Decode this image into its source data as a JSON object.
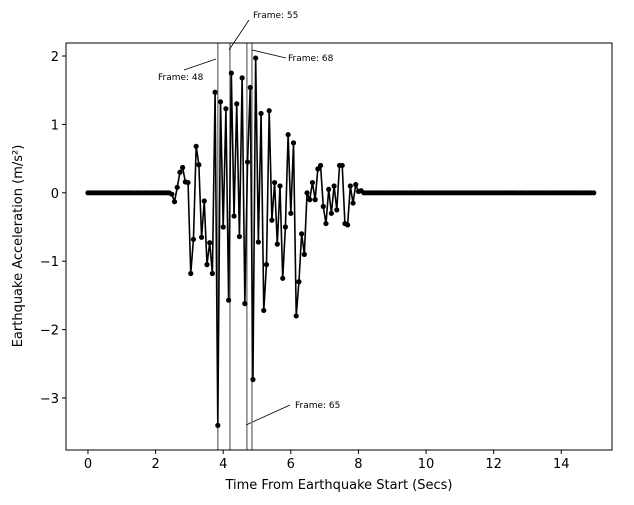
{
  "chart_data": {
    "type": "line",
    "xlabel": "Time From Earthquake Start (Secs)",
    "ylabel": "Earthquake Acceleration (m/s²)",
    "x": [
      0,
      0.08,
      0.16,
      0.24,
      0.32,
      0.4,
      0.48,
      0.56,
      0.64,
      0.72,
      0.8,
      0.88,
      0.96,
      1.04,
      1.12,
      1.2,
      1.28,
      1.36,
      1.44,
      1.52,
      1.6,
      1.68,
      1.76,
      1.84,
      1.92,
      2,
      2.08,
      2.16,
      2.24,
      2.32,
      2.4,
      2.48,
      2.56,
      2.64,
      2.72,
      2.8,
      2.88,
      2.96,
      3.04,
      3.12,
      3.2,
      3.28,
      3.36,
      3.44,
      3.52,
      3.6,
      3.68,
      3.76,
      3.84,
      3.92,
      4,
      4.08,
      4.16,
      4.24,
      4.32,
      4.4,
      4.48,
      4.56,
      4.64,
      4.72,
      4.8,
      4.88,
      4.96,
      5.04,
      5.12,
      5.2,
      5.28,
      5.36,
      5.44,
      5.52,
      5.6,
      5.68,
      5.76,
      5.84,
      5.92,
      6,
      6.08,
      6.16,
      6.24,
      6.32,
      6.4,
      6.48,
      6.56,
      6.64,
      6.72,
      6.8,
      6.88,
      6.96,
      7.04,
      7.12,
      7.2,
      7.28,
      7.36,
      7.44,
      7.52,
      7.6,
      7.68,
      7.76,
      7.84,
      7.92,
      8,
      8.08,
      8.16,
      8.24,
      8.32,
      8.4,
      8.48,
      8.56,
      8.64,
      8.72,
      8.8,
      8.88,
      8.96,
      9.04,
      9.12,
      9.2,
      9.28,
      9.36,
      9.44,
      9.52,
      9.6,
      9.68,
      9.76,
      9.84,
      9.92,
      10,
      10.08,
      10.16,
      10.24,
      10.32,
      10.4,
      10.48,
      10.56,
      10.64,
      10.72,
      10.8,
      10.88,
      10.96,
      11.04,
      11.12,
      11.2,
      11.28,
      11.36,
      11.44,
      11.52,
      11.6,
      11.68,
      11.76,
      11.84,
      11.92,
      12,
      12.08,
      12.16,
      12.24,
      12.32,
      12.4,
      12.48,
      12.56,
      12.64,
      12.72,
      12.8,
      12.88,
      12.96,
      13.04,
      13.12,
      13.2,
      13.28,
      13.36,
      13.44,
      13.52,
      13.6,
      13.68,
      13.76,
      13.84,
      13.92,
      14,
      14.08,
      14.16,
      14.24,
      14.32,
      14.4,
      14.48,
      14.56,
      14.64,
      14.72,
      14.8,
      14.88,
      14.96
    ],
    "values": [
      0,
      0,
      0,
      0,
      0,
      0,
      0,
      0,
      0,
      0,
      0,
      0,
      0,
      0,
      0,
      0,
      0,
      0,
      0,
      0,
      0,
      0,
      0,
      0,
      0,
      0,
      0,
      0,
      0,
      0,
      0,
      -0.02,
      -0.13,
      0.08,
      0.3,
      0.37,
      0.16,
      0.15,
      -1.18,
      -0.68,
      0.68,
      0.41,
      -0.65,
      -0.12,
      -1.05,
      -0.73,
      -1.18,
      1.47,
      -3.4,
      1.33,
      -0.5,
      1.23,
      -1.57,
      1.75,
      -0.34,
      1.3,
      -0.64,
      1.68,
      -1.62,
      0.45,
      1.54,
      -2.73,
      1.97,
      -0.72,
      1.16,
      -1.72,
      -1.05,
      1.2,
      -0.4,
      0.15,
      -0.75,
      0.1,
      -1.25,
      -0.5,
      0.85,
      -0.3,
      0.73,
      -1.8,
      -1.3,
      -0.6,
      -0.9,
      0,
      -0.1,
      0.15,
      -0.1,
      0.35,
      0.4,
      -0.2,
      -0.45,
      0.05,
      -0.3,
      0.1,
      -0.25,
      0.4,
      0.4,
      -0.45,
      -0.47,
      0.1,
      -0.15,
      0.12,
      0.02,
      0.03,
      0,
      0,
      0,
      0,
      0,
      0,
      0,
      0,
      0,
      0,
      0,
      0,
      0,
      0,
      0,
      0,
      0,
      0,
      0,
      0,
      0,
      0,
      0,
      0,
      0,
      0,
      0,
      0,
      0,
      0,
      0,
      0,
      0,
      0,
      0,
      0,
      0,
      0,
      0,
      0,
      0,
      0,
      0,
      0,
      0,
      0,
      0,
      0,
      0,
      0,
      0,
      0,
      0,
      0,
      0,
      0,
      0,
      0,
      0,
      0,
      0,
      0,
      0,
      0,
      0,
      0,
      0,
      0,
      0,
      0,
      0,
      0,
      0,
      0,
      0,
      0,
      0,
      0,
      0,
      0,
      0,
      0,
      0,
      0,
      0,
      0
    ],
    "color": "#000000",
    "vlines": [
      {
        "x": 3.84,
        "label": "Frame: 48"
      },
      {
        "x": 4.2,
        "label": "Frame: 55"
      },
      {
        "x": 4.7,
        "label": "Frame: 65"
      },
      {
        "x": 4.85,
        "label": "Frame: 68"
      }
    ],
    "vline_color": "#808080",
    "xlim": [
      -0.65,
      15.5
    ],
    "xticks": [
      0,
      2,
      4,
      6,
      8,
      10,
      12,
      14
    ],
    "ylim": [
      -3.76,
      2.19
    ],
    "yticks": [
      {
        "value": -3,
        "label": "−3"
      },
      {
        "value": -2,
        "label": "−2"
      },
      {
        "value": -1,
        "label": "−1"
      },
      0,
      1,
      2
    ]
  }
}
